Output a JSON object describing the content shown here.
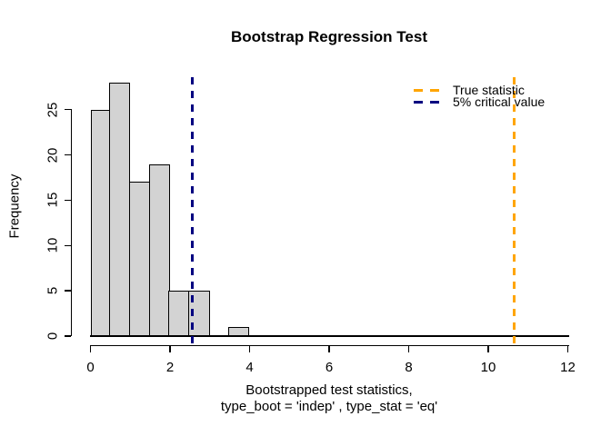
{
  "chart_data": {
    "type": "bar",
    "subtype": "histogram",
    "title": "Bootstrap Regression Test",
    "xlabel_line1": "Bootstrapped test statistics,",
    "xlabel_line2": "type_boot = 'indep' , type_stat = 'eq'",
    "ylabel": "Frequency",
    "bin_start": 0,
    "bin_width": 0.5,
    "counts": [
      25,
      28,
      17,
      19,
      5,
      5,
      0,
      1
    ],
    "x_ticks": [
      "0",
      "2",
      "4",
      "6",
      "8",
      "10",
      "12"
    ],
    "x_tick_values": [
      0,
      2,
      4,
      6,
      8,
      10,
      12
    ],
    "y_ticks": [
      "0",
      "5",
      "10",
      "15",
      "20",
      "25"
    ],
    "y_tick_values": [
      0,
      5,
      10,
      15,
      20,
      25
    ],
    "xlim": [
      0,
      12
    ],
    "ylim": [
      0,
      28
    ],
    "grid": "off",
    "bar_fill_color": "#d3d3d3",
    "bar_border_color": "#000000",
    "vlines": [
      {
        "name": "true-statistic-line",
        "x": 10.64,
        "color": "#ffa500",
        "style": "dashed",
        "label": "True statistic"
      },
      {
        "name": "critical-value-line",
        "x": 2.56,
        "color": "#000080",
        "style": "dashed",
        "label": "5% critical value"
      }
    ],
    "legend": {
      "position": "topright",
      "entries": [
        {
          "label": "True statistic",
          "color": "#ffa500",
          "style": "dashed"
        },
        {
          "label": "5% critical value",
          "color": "#000080",
          "style": "dashed"
        }
      ]
    }
  }
}
